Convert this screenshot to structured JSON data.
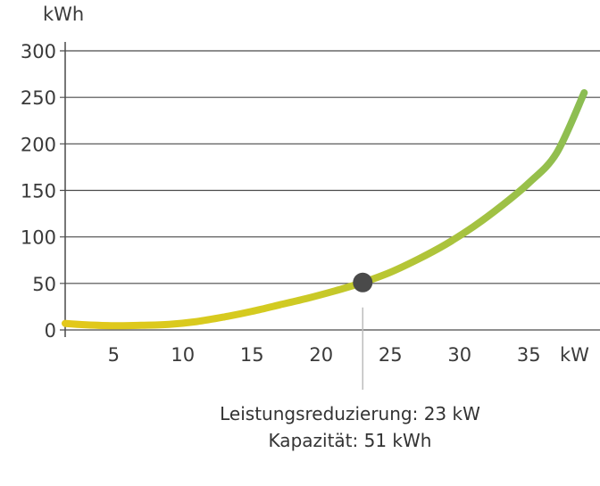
{
  "chart_data": {
    "type": "line",
    "ylabel": "kWh",
    "xlabel": "kW",
    "yticks": [
      0,
      50,
      100,
      150,
      200,
      250,
      300
    ],
    "xticks": [
      5,
      10,
      15,
      20,
      25,
      30,
      35
    ],
    "xlim": [
      1.5,
      39
    ],
    "ylim": [
      0,
      300
    ],
    "series": [
      {
        "name": "Kapazität",
        "x": [
          1.5,
          3,
          5,
          7,
          9,
          11,
          13,
          15,
          17,
          19,
          21,
          23,
          25,
          27,
          29,
          31,
          33,
          35,
          37,
          39
        ],
        "values": [
          7,
          5.5,
          4.5,
          5,
          6,
          9,
          14,
          20,
          27,
          34,
          42,
          51,
          62,
          76,
          92,
          111,
          133,
          158,
          190,
          255
        ]
      }
    ],
    "marker": {
      "x": 23,
      "y": 51
    },
    "colors": {
      "start": "#e3c81a",
      "end": "#8bbd53",
      "marker": "#4a4a4a",
      "grid": "#4a4a4a"
    }
  },
  "captions": {
    "line1": "Leistungsreduzierung: 23 kW",
    "line2": "Kapazität: 51 kWh"
  }
}
